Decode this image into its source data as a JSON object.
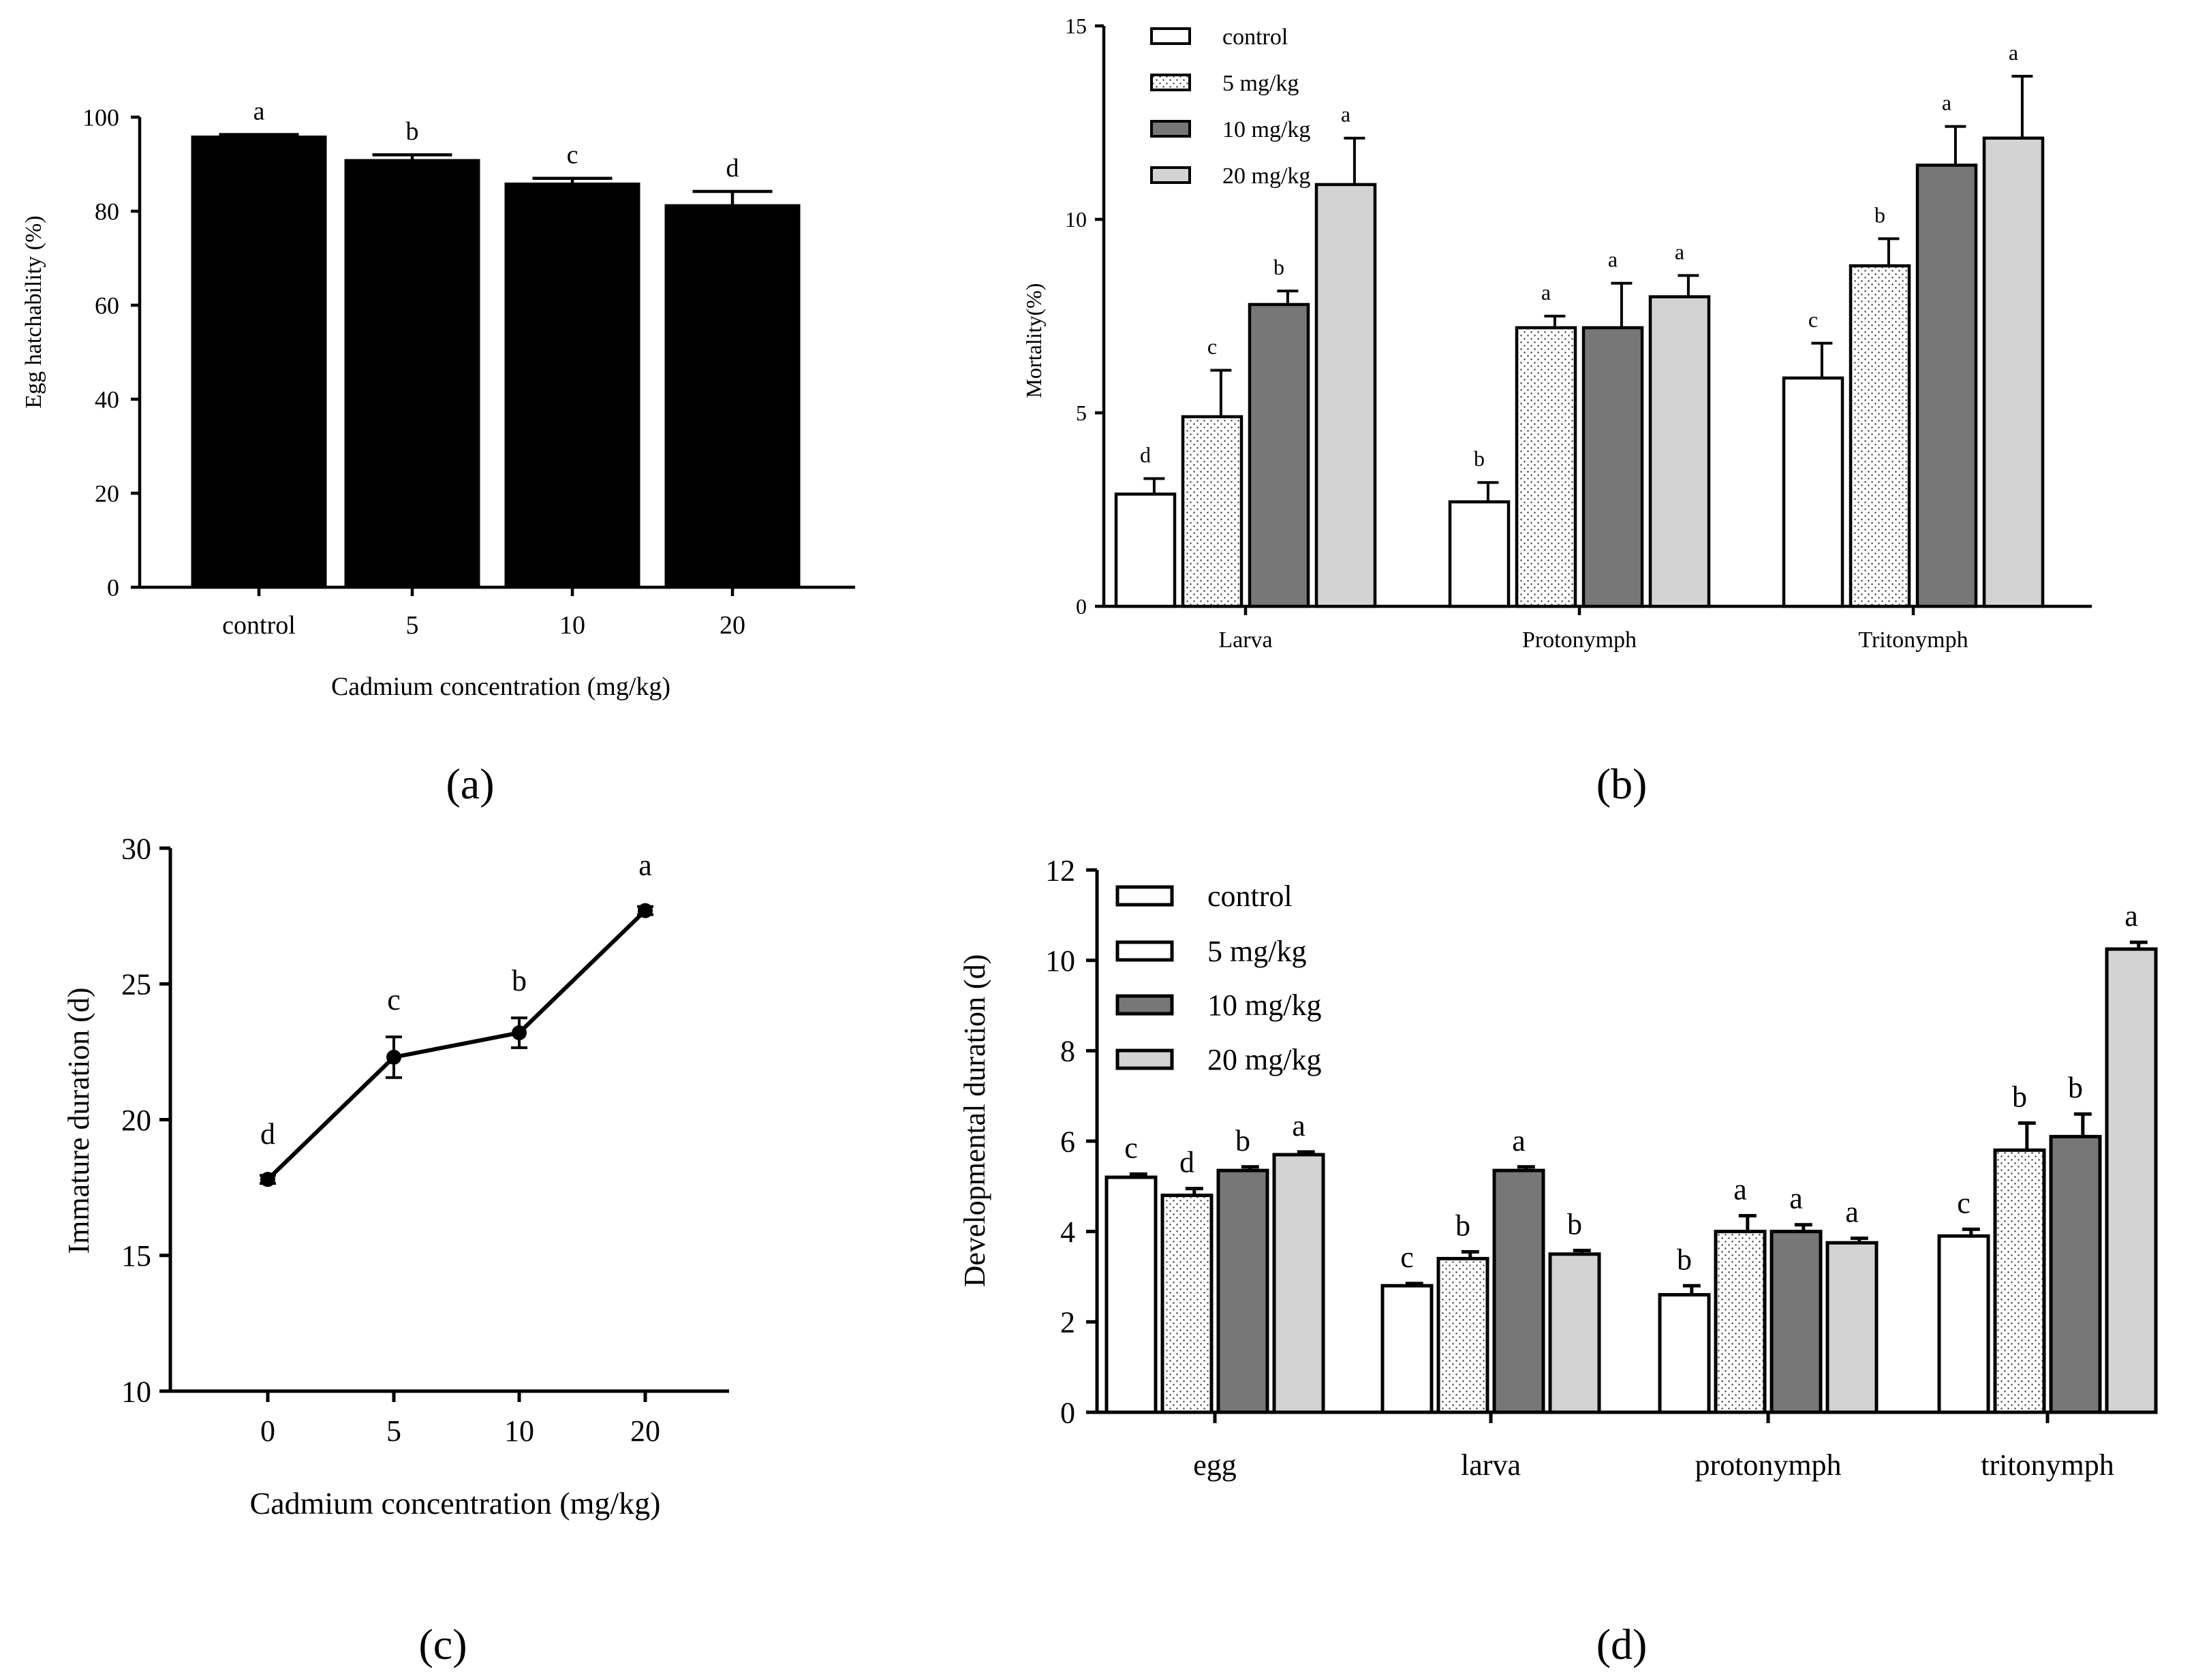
{
  "chart_data": [
    {
      "id": "a",
      "type": "bar",
      "panel_label": "(a)",
      "title": "",
      "xlabel": "Cadmium concentration (mg/kg)",
      "ylabel": "Egg hatchability (%)",
      "ylim": [
        0,
        100
      ],
      "yticks": [
        "0",
        "20",
        "40",
        "60",
        "80",
        "100"
      ],
      "categories": [
        "control",
        "5",
        "10",
        "20"
      ],
      "values": [
        95.8,
        90.8,
        85.8,
        81.2
      ],
      "errors": [
        0.5,
        1.2,
        1.2,
        3.0
      ],
      "letters": [
        "a",
        "b",
        "c",
        "d"
      ],
      "fill": "#000000",
      "grid": false
    },
    {
      "id": "b",
      "type": "bar",
      "panel_label": "(b)",
      "title": "",
      "xlabel": "",
      "ylabel": "Mortality(%)",
      "ylim": [
        0,
        15
      ],
      "yticks": [
        "0",
        "5",
        "10",
        "15"
      ],
      "categories": [
        "Larva",
        "Protonymph",
        "Tritonymph"
      ],
      "legend_position": "top-left",
      "series": [
        {
          "name": "control",
          "pattern": "white",
          "values": [
            2.9,
            2.7,
            5.9
          ],
          "errors": [
            0.4,
            0.5,
            0.9
          ],
          "letters": [
            "d",
            "b",
            "c"
          ]
        },
        {
          "name": "5 mg/kg",
          "pattern": "dots",
          "values": [
            4.9,
            7.2,
            8.8
          ],
          "errors": [
            1.2,
            0.3,
            0.7
          ],
          "letters": [
            "c",
            "a",
            "b"
          ]
        },
        {
          "name": "10 mg/kg",
          "pattern": "dark",
          "values": [
            7.8,
            7.2,
            11.4
          ],
          "errors": [
            0.35,
            1.15,
            1.0
          ],
          "letters": [
            "b",
            "a",
            "a"
          ]
        },
        {
          "name": "20 mg/kg",
          "pattern": "light",
          "values": [
            10.9,
            8.0,
            12.1
          ],
          "errors": [
            1.2,
            0.55,
            1.6
          ],
          "letters": [
            "a",
            "a",
            "a"
          ]
        }
      ],
      "grid": false
    },
    {
      "id": "c",
      "type": "line",
      "panel_label": "(c)",
      "title": "",
      "xlabel": "Cadmium concentration (mg/kg)",
      "ylabel": "Immature duration (d)",
      "ylim": [
        10,
        30
      ],
      "yticks": [
        "10",
        "15",
        "20",
        "25",
        "30"
      ],
      "categories": [
        "0",
        "5",
        "10",
        "20"
      ],
      "values": [
        17.8,
        22.3,
        23.2,
        27.7
      ],
      "errors": [
        0.15,
        0.75,
        0.55,
        0.15
      ],
      "letters": [
        "d",
        "c",
        "b",
        "a"
      ],
      "grid": false
    },
    {
      "id": "d",
      "type": "bar",
      "panel_label": "(d)",
      "title": "",
      "xlabel": "",
      "ylabel": "Developmental duration (d)",
      "ylim": [
        0,
        12
      ],
      "yticks": [
        "0",
        "2",
        "4",
        "6",
        "8",
        "10",
        "12"
      ],
      "categories": [
        "egg",
        "larva",
        "protonymph",
        "tritonymph"
      ],
      "legend_position": "top-left",
      "series": [
        {
          "name": "control",
          "pattern": "white",
          "values": [
            5.2,
            2.8,
            2.6,
            3.9
          ],
          "errors": [
            0.07,
            0.05,
            0.2,
            0.15
          ],
          "letters": [
            "c",
            "c",
            "b",
            "c"
          ]
        },
        {
          "name": "5 mg/kg",
          "pattern": "dots",
          "values": [
            4.8,
            3.4,
            4.0,
            5.8
          ],
          "errors": [
            0.15,
            0.15,
            0.35,
            0.6
          ],
          "letters": [
            "d",
            "b",
            "a",
            "b"
          ]
        },
        {
          "name": "10 mg/kg",
          "pattern": "dark",
          "values": [
            5.35,
            5.35,
            4.0,
            6.1
          ],
          "errors": [
            0.08,
            0.08,
            0.15,
            0.5
          ],
          "letters": [
            "b",
            "a",
            "a",
            "b"
          ]
        },
        {
          "name": "20 mg/kg",
          "pattern": "light",
          "values": [
            5.7,
            3.5,
            3.75,
            10.25
          ],
          "errors": [
            0.06,
            0.08,
            0.1,
            0.15
          ],
          "letters": [
            "a",
            "b",
            "a",
            "a"
          ]
        }
      ],
      "grid": false
    }
  ]
}
